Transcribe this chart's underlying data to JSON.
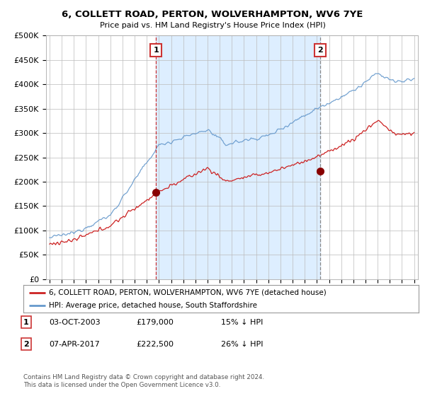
{
  "title": "6, COLLETT ROAD, PERTON, WOLVERHAMPTON, WV6 7YE",
  "subtitle": "Price paid vs. HM Land Registry's House Price Index (HPI)",
  "ylim": [
    0,
    500000
  ],
  "yticks": [
    0,
    50000,
    100000,
    150000,
    200000,
    250000,
    300000,
    350000,
    400000,
    450000,
    500000
  ],
  "ytick_labels": [
    "£0",
    "£50K",
    "£100K",
    "£150K",
    "£200K",
    "£250K",
    "£300K",
    "£350K",
    "£400K",
    "£450K",
    "£500K"
  ],
  "hpi_color": "#6699cc",
  "price_color": "#cc2222",
  "shade_color": "#ddeeff",
  "vline1_color": "#cc3333",
  "vline1_style": "--",
  "vline2_color": "#888888",
  "vline2_style": "--",
  "purchase_1_date": 2003.75,
  "purchase_1_price": 179000,
  "purchase_2_date": 2017.27,
  "purchase_2_price": 222500,
  "xlim_left": 1994.7,
  "xlim_right": 2025.3,
  "legend_line1": "6, COLLETT ROAD, PERTON, WOLVERHAMPTON, WV6 7YE (detached house)",
  "legend_line2": "HPI: Average price, detached house, South Staffordshire",
  "table_1_date": "03-OCT-2003",
  "table_1_price": "£179,000",
  "table_1_hpi": "15% ↓ HPI",
  "table_2_date": "07-APR-2017",
  "table_2_price": "£222,500",
  "table_2_hpi": "26% ↓ HPI",
  "footnote": "Contains HM Land Registry data © Crown copyright and database right 2024.\nThis data is licensed under the Open Government Licence v3.0.",
  "bg_color": "#ffffff",
  "grid_color": "#bbbbbb"
}
